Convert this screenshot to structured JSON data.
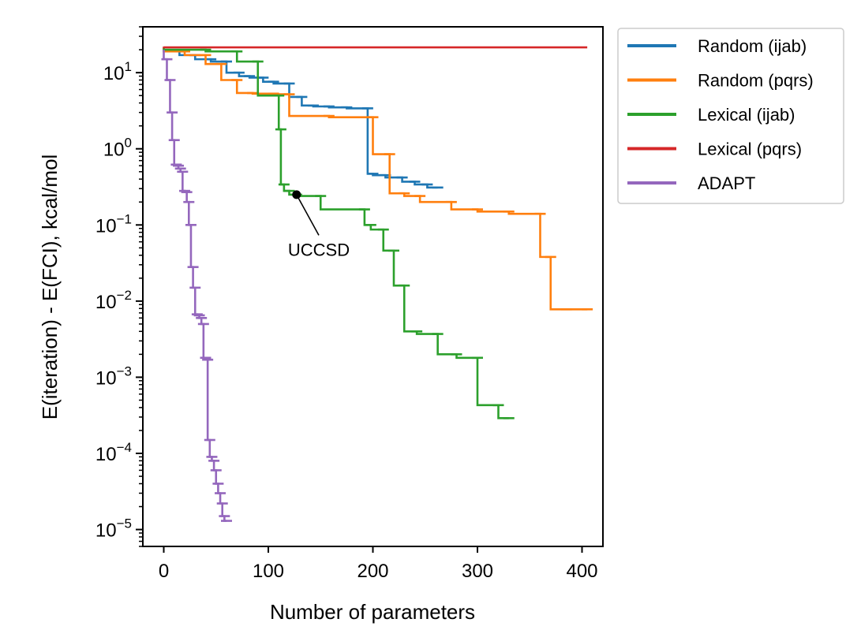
{
  "chart_data": {
    "type": "line",
    "xlabel": "Number of parameters",
    "ylabel": "E(iteration) - E(FCI), kcal/mol",
    "xlim": [
      -20,
      420
    ],
    "ylim": [
      6e-06,
      40
    ],
    "yscale": "log",
    "x_ticks": [
      0,
      100,
      200,
      300,
      400
    ],
    "y_ticks": [
      {
        "value": 1e-05,
        "base": "10",
        "exp": "−5"
      },
      {
        "value": 0.0001,
        "base": "10",
        "exp": "−4"
      },
      {
        "value": 0.001,
        "base": "10",
        "exp": "−3"
      },
      {
        "value": 0.01,
        "base": "10",
        "exp": "−2"
      },
      {
        "value": 0.1,
        "base": "10",
        "exp": "−1"
      },
      {
        "value": 1,
        "base": "10",
        "exp": "0"
      },
      {
        "value": 10,
        "base": "10",
        "exp": "1"
      }
    ],
    "grid": false,
    "legend_position": "outside top-right",
    "series": [
      {
        "name": "Random (ijab)",
        "color": "#1f77b4",
        "x": [
          0,
          15,
          30,
          45,
          60,
          72,
          82,
          95,
          105,
          120,
          132,
          143,
          158,
          175,
          195,
          200,
          212,
          228,
          240,
          252,
          262
        ],
        "y": [
          20,
          19,
          17,
          15,
          14,
          10,
          9,
          8.6,
          7.6,
          7.2,
          4.8,
          3.7,
          3.6,
          3.5,
          3.4,
          0.47,
          0.45,
          0.42,
          0.37,
          0.34,
          0.31
        ]
      },
      {
        "name": "Random (pqrs)",
        "color": "#ff7f0e",
        "x": [
          0,
          20,
          40,
          55,
          70,
          85,
          105,
          120,
          158,
          200,
          216,
          230,
          245,
          275,
          300,
          330,
          360,
          370,
          385,
          405
        ],
        "y": [
          21,
          19,
          17,
          13,
          8,
          5.4,
          5.3,
          5.2,
          2.7,
          2.6,
          0.85,
          0.26,
          0.24,
          0.2,
          0.16,
          0.15,
          0.14,
          0.038,
          0.0078,
          0.0078
        ]
      },
      {
        "name": "Lexical (ijab)",
        "color": "#2ca02c",
        "x": [
          0,
          40,
          70,
          90,
          110,
          112,
          115,
          120,
          127,
          150,
          192,
          198,
          210,
          220,
          230,
          242,
          262,
          280,
          300,
          320,
          330
        ],
        "y": [
          21,
          20,
          19,
          14,
          5,
          1.8,
          0.34,
          0.28,
          0.25,
          0.24,
          0.16,
          0.1,
          0.087,
          0.046,
          0.016,
          0.004,
          0.0037,
          0.002,
          0.0018,
          0.00043,
          0.00029
        ]
      },
      {
        "name": "Lexical (pqrs)",
        "color": "#d62728",
        "x": [
          0,
          405
        ],
        "y": [
          22,
          21.5
        ]
      },
      {
        "name": "ADAPT",
        "color": "#9467bd",
        "x": [
          0,
          3,
          6,
          8,
          10,
          12,
          14,
          16,
          18,
          20,
          22,
          24,
          26,
          28,
          30,
          32,
          34,
          36,
          38,
          40,
          42,
          44,
          46,
          48,
          50,
          52,
          54,
          56,
          58,
          60
        ],
        "y": [
          20,
          15,
          8,
          3,
          1.3,
          0.62,
          0.6,
          0.55,
          0.5,
          0.28,
          0.27,
          0.2,
          0.1,
          0.028,
          0.015,
          0.0067,
          0.0065,
          0.006,
          0.005,
          0.0018,
          0.0017,
          0.00015,
          9e-05,
          8e-05,
          6e-05,
          4e-05,
          3e-05,
          2.2e-05,
          1.5e-05,
          1.3e-05
        ]
      }
    ],
    "annotations": [
      {
        "text": "UCCSD",
        "x": 127,
        "y": 0.25,
        "label_x": 100,
        "label_y": 0.05
      }
    ]
  }
}
